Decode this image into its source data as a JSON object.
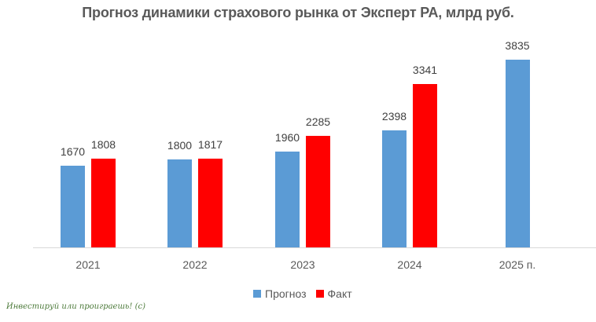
{
  "chart_data": {
    "type": "bar",
    "title": "Прогноз динамики страхового рынка от Эксперт РА, млрд руб.",
    "xlabel": "",
    "ylabel": "",
    "categories": [
      "2021",
      "2022",
      "2023",
      "2024",
      "2025 п."
    ],
    "series": [
      {
        "name": "Прогноз",
        "color": "#5b9bd5",
        "values": [
          1670,
          1800,
          1960,
          2398,
          3835
        ]
      },
      {
        "name": "Факт",
        "color": "#ff0000",
        "values": [
          1808,
          1817,
          2285,
          3341,
          null
        ]
      }
    ],
    "ylim": [
      0,
      3835
    ],
    "grid": false,
    "legend_position": "bottom",
    "data_labels": true
  },
  "legend": [
    {
      "label": "Прогноз",
      "color": "#5b9bd5"
    },
    {
      "label": "Факт",
      "color": "#ff0000"
    }
  ],
  "watermark": "Инвестируй или проиграешь! (с)"
}
